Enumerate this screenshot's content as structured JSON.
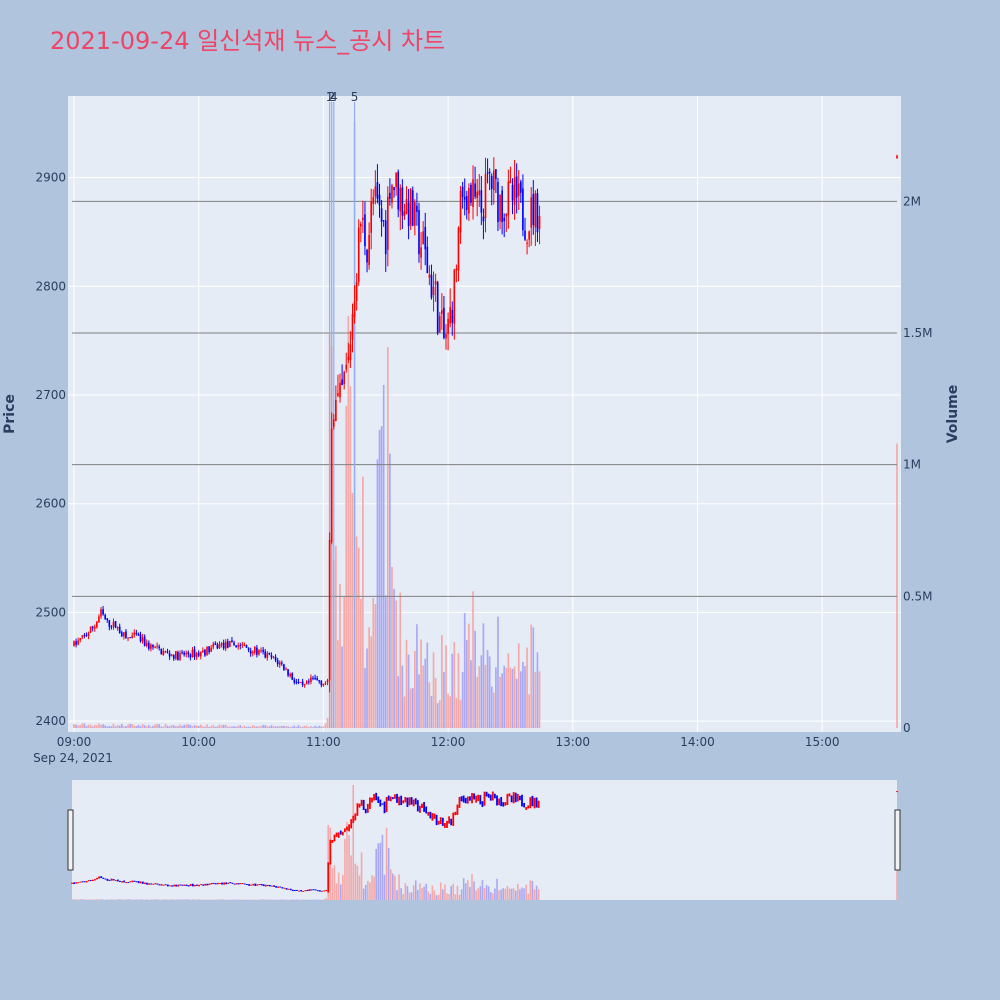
{
  "chart_data": {
    "type": "candlestick",
    "title": "2021-09-24 일신석재 뉴스_공시 차트",
    "date_label": "Sep 24, 2021",
    "y_title": "Price",
    "y2_title": "Volume",
    "x_ticks": [
      "09:00",
      "10:00",
      "11:00",
      "12:00",
      "13:00",
      "14:00",
      "15:00"
    ],
    "y_ticks": [
      "2400",
      "2500",
      "2600",
      "2700",
      "2800",
      "2900"
    ],
    "y2_ticks": [
      "0",
      "0.5M",
      "1M",
      "1.5M",
      "2M"
    ],
    "y_range": [
      2390,
      2975
    ],
    "y2_range": [
      0,
      2400000
    ],
    "x_range_minutes": [
      0,
      396
    ],
    "volume_hlines": [
      500000,
      1000000,
      1500000,
      2000000
    ],
    "news_markers": [
      {
        "label": "1",
        "minute": 123
      },
      {
        "label": "2",
        "minute": 124
      },
      {
        "label": "4",
        "minute": 125
      },
      {
        "label": "5",
        "minute": 135
      }
    ],
    "price_anchors": [
      [
        0,
        2470
      ],
      [
        5,
        2478
      ],
      [
        10,
        2488
      ],
      [
        13,
        2500
      ],
      [
        16,
        2490
      ],
      [
        20,
        2488
      ],
      [
        25,
        2476
      ],
      [
        30,
        2478
      ],
      [
        35,
        2470
      ],
      [
        40,
        2466
      ],
      [
        45,
        2462
      ],
      [
        50,
        2460
      ],
      [
        55,
        2462
      ],
      [
        60,
        2462
      ],
      [
        65,
        2466
      ],
      [
        70,
        2470
      ],
      [
        75,
        2470
      ],
      [
        80,
        2470
      ],
      [
        85,
        2466
      ],
      [
        90,
        2462
      ],
      [
        95,
        2458
      ],
      [
        100,
        2452
      ],
      [
        105,
        2440
      ],
      [
        110,
        2430
      ],
      [
        115,
        2438
      ],
      [
        120,
        2436
      ],
      [
        122,
        2434
      ],
      [
        123,
        2560
      ],
      [
        124,
        2690
      ],
      [
        128,
        2690
      ],
      [
        132,
        2730
      ],
      [
        135,
        2800
      ],
      [
        138,
        2860
      ],
      [
        141,
        2840
      ],
      [
        144,
        2880
      ],
      [
        148,
        2860
      ],
      [
        150,
        2850
      ],
      [
        152,
        2900
      ],
      [
        155,
        2890
      ],
      [
        158,
        2880
      ],
      [
        162,
        2870
      ],
      [
        165,
        2850
      ],
      [
        168,
        2835
      ],
      [
        171,
        2810
      ],
      [
        174,
        2790
      ],
      [
        176,
        2765
      ],
      [
        178,
        2750
      ],
      [
        180,
        2760
      ],
      [
        183,
        2800
      ],
      [
        186,
        2870
      ],
      [
        189,
        2890
      ],
      [
        192,
        2880
      ],
      [
        196,
        2870
      ],
      [
        200,
        2900
      ],
      [
        204,
        2880
      ],
      [
        207,
        2875
      ],
      [
        210,
        2880
      ],
      [
        213,
        2880
      ],
      [
        215,
        2870
      ],
      [
        218,
        2860
      ],
      [
        221,
        2870
      ],
      [
        224,
        2870
      ]
    ],
    "volume_anchors": [
      [
        0,
        15000
      ],
      [
        120,
        8000
      ],
      [
        122,
        30000
      ],
      [
        123,
        1500000
      ],
      [
        124,
        600000
      ],
      [
        130,
        700000
      ],
      [
        135,
        2350000
      ],
      [
        140,
        650000
      ],
      [
        145,
        700000
      ],
      [
        150,
        1400000
      ],
      [
        155,
        560000
      ],
      [
        160,
        280000
      ],
      [
        170,
        380000
      ],
      [
        175,
        250000
      ],
      [
        180,
        360000
      ],
      [
        185,
        240000
      ],
      [
        190,
        440000
      ],
      [
        195,
        520000
      ],
      [
        200,
        270000
      ],
      [
        205,
        360000
      ],
      [
        210,
        280000
      ],
      [
        215,
        300000
      ],
      [
        220,
        320000
      ],
      [
        224,
        270000
      ]
    ],
    "extra_points": [
      {
        "minute": 396,
        "price": 2920,
        "volume": 1080000
      }
    ],
    "candle_interval_minutes": 1,
    "up_color": "#ff0000",
    "down_color": "#0000ff",
    "up_volume_color": "#f4a8a8",
    "down_volume_color": "#a8a8f4",
    "marker_color": "#90aef0",
    "plot_background": "#e5ecf6",
    "page_background": "#b0c4de",
    "rangeslider": true
  }
}
